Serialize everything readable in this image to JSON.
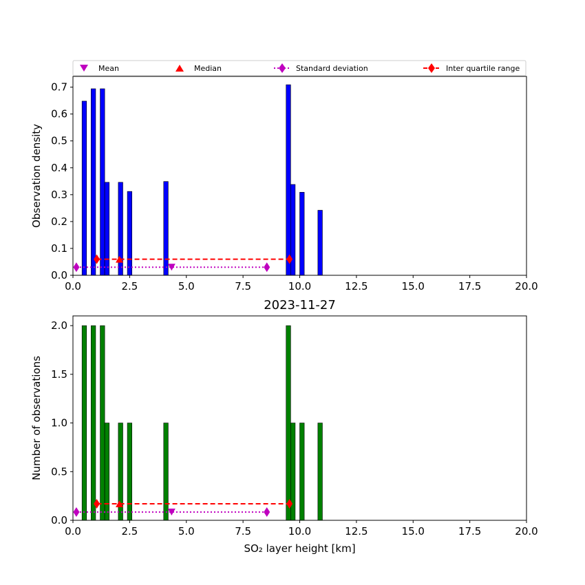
{
  "chart_data": [
    {
      "type": "bar",
      "title": "",
      "xlabel": "",
      "ylabel": "Observation density",
      "xlim": [
        0,
        20
      ],
      "ylim": [
        0,
        0.74
      ],
      "xticks": [
        0.0,
        2.5,
        5.0,
        7.5,
        10.0,
        12.5,
        15.0,
        17.5,
        20.0
      ],
      "xtick_labels": [
        "0.0",
        "2.5",
        "5.0",
        "7.5",
        "10.0",
        "12.5",
        "15.0",
        "17.5",
        "20.0"
      ],
      "yticks": [
        0.0,
        0.1,
        0.2,
        0.3,
        0.4,
        0.5,
        0.6,
        0.7
      ],
      "ytick_labels": [
        "0.0",
        "0.1",
        "0.2",
        "0.3",
        "0.4",
        "0.5",
        "0.6",
        "0.7"
      ],
      "bar_color": "#0000ff",
      "bar_width": 0.2,
      "bars": [
        {
          "x": 0.5,
          "value": 0.648
        },
        {
          "x": 0.9,
          "value": 0.694
        },
        {
          "x": 1.3,
          "value": 0.694
        },
        {
          "x": 1.5,
          "value": 0.346
        },
        {
          "x": 2.1,
          "value": 0.346
        },
        {
          "x": 2.5,
          "value": 0.312
        },
        {
          "x": 4.1,
          "value": 0.349
        },
        {
          "x": 9.5,
          "value": 0.709
        },
        {
          "x": 9.7,
          "value": 0.338
        },
        {
          "x": 10.1,
          "value": 0.309
        },
        {
          "x": 10.9,
          "value": 0.242
        }
      ],
      "stats": {
        "mean": {
          "x": 4.35,
          "y": 0.03
        },
        "median": {
          "x": 2.05,
          "y": 0.06
        },
        "std": {
          "x": [
            0.15,
            8.55
          ],
          "y": 0.03
        },
        "iqr": {
          "x": [
            1.05,
            9.55
          ],
          "y": 0.06
        }
      },
      "legend": {
        "placement": "top",
        "entries": [
          {
            "label": "Mean",
            "marker": "triangle-down",
            "color": "#bf00bf"
          },
          {
            "label": "Median",
            "marker": "triangle-up",
            "color": "#ff0000"
          },
          {
            "label": "Standard deviation",
            "marker": "diamond",
            "line": "dotted",
            "color": "#bf00bf"
          },
          {
            "label": "Inter quartile range",
            "marker": "diamond",
            "line": "dashed",
            "color": "#ff0000"
          }
        ]
      }
    },
    {
      "type": "bar",
      "title": "2023-11-27",
      "xlabel": "SO₂ layer height [km]",
      "ylabel": "Number of observations",
      "xlim": [
        0,
        20
      ],
      "ylim": [
        0,
        2.1
      ],
      "xticks": [
        0.0,
        2.5,
        5.0,
        7.5,
        10.0,
        12.5,
        15.0,
        17.5,
        20.0
      ],
      "xtick_labels": [
        "0.0",
        "2.5",
        "5.0",
        "7.5",
        "10.0",
        "12.5",
        "15.0",
        "17.5",
        "20.0"
      ],
      "yticks": [
        0.0,
        0.5,
        1.0,
        1.5,
        2.0
      ],
      "ytick_labels": [
        "0.0",
        "0.5",
        "1.0",
        "1.5",
        "2.0"
      ],
      "bar_color": "#008000",
      "bar_width": 0.2,
      "bars": [
        {
          "x": 0.5,
          "value": 2
        },
        {
          "x": 0.9,
          "value": 2
        },
        {
          "x": 1.3,
          "value": 2
        },
        {
          "x": 1.5,
          "value": 1
        },
        {
          "x": 2.1,
          "value": 1
        },
        {
          "x": 2.5,
          "value": 1
        },
        {
          "x": 4.1,
          "value": 1
        },
        {
          "x": 9.5,
          "value": 2
        },
        {
          "x": 9.7,
          "value": 1
        },
        {
          "x": 10.1,
          "value": 1
        },
        {
          "x": 10.9,
          "value": 1
        }
      ],
      "stats": {
        "mean": {
          "x": 4.35,
          "y": 0.085
        },
        "median": {
          "x": 2.05,
          "y": 0.17
        },
        "std": {
          "x": [
            0.15,
            8.55
          ],
          "y": 0.085
        },
        "iqr": {
          "x": [
            1.05,
            9.55
          ],
          "y": 0.17
        }
      }
    }
  ]
}
